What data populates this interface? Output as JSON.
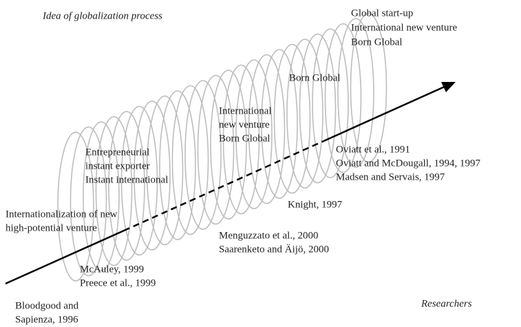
{
  "title": "Idea of globalization process",
  "researchers_label": "Researchers",
  "concepts": [
    {
      "lines": [
        "Global start-up",
        "International new venture",
        "Born Global"
      ]
    },
    {
      "lines": [
        "Born Global"
      ]
    },
    {
      "lines": [
        "International",
        "new venture",
        "Born Global"
      ]
    },
    {
      "lines": [
        "Entrepreneurial",
        "instant exporter",
        "Instant international"
      ]
    },
    {
      "lines": [
        "Internationalization of new",
        "high-potential venture"
      ]
    }
  ],
  "researchers": [
    {
      "lines": [
        "Oviatt et al., 1991",
        "Oviatt and McDougall, 1994, 1997",
        "Madsen and Servais, 1997"
      ]
    },
    {
      "lines": [
        "Knight, 1997"
      ]
    },
    {
      "lines": [
        "Menguzzato et al., 2000",
        "Saarenketo and Äijö, 2000"
      ]
    },
    {
      "lines": [
        "McAuley, 1999",
        "Preece et al., 1999"
      ]
    },
    {
      "lines": [
        "Bloodgood and",
        "Sapienza, 1996"
      ]
    }
  ]
}
